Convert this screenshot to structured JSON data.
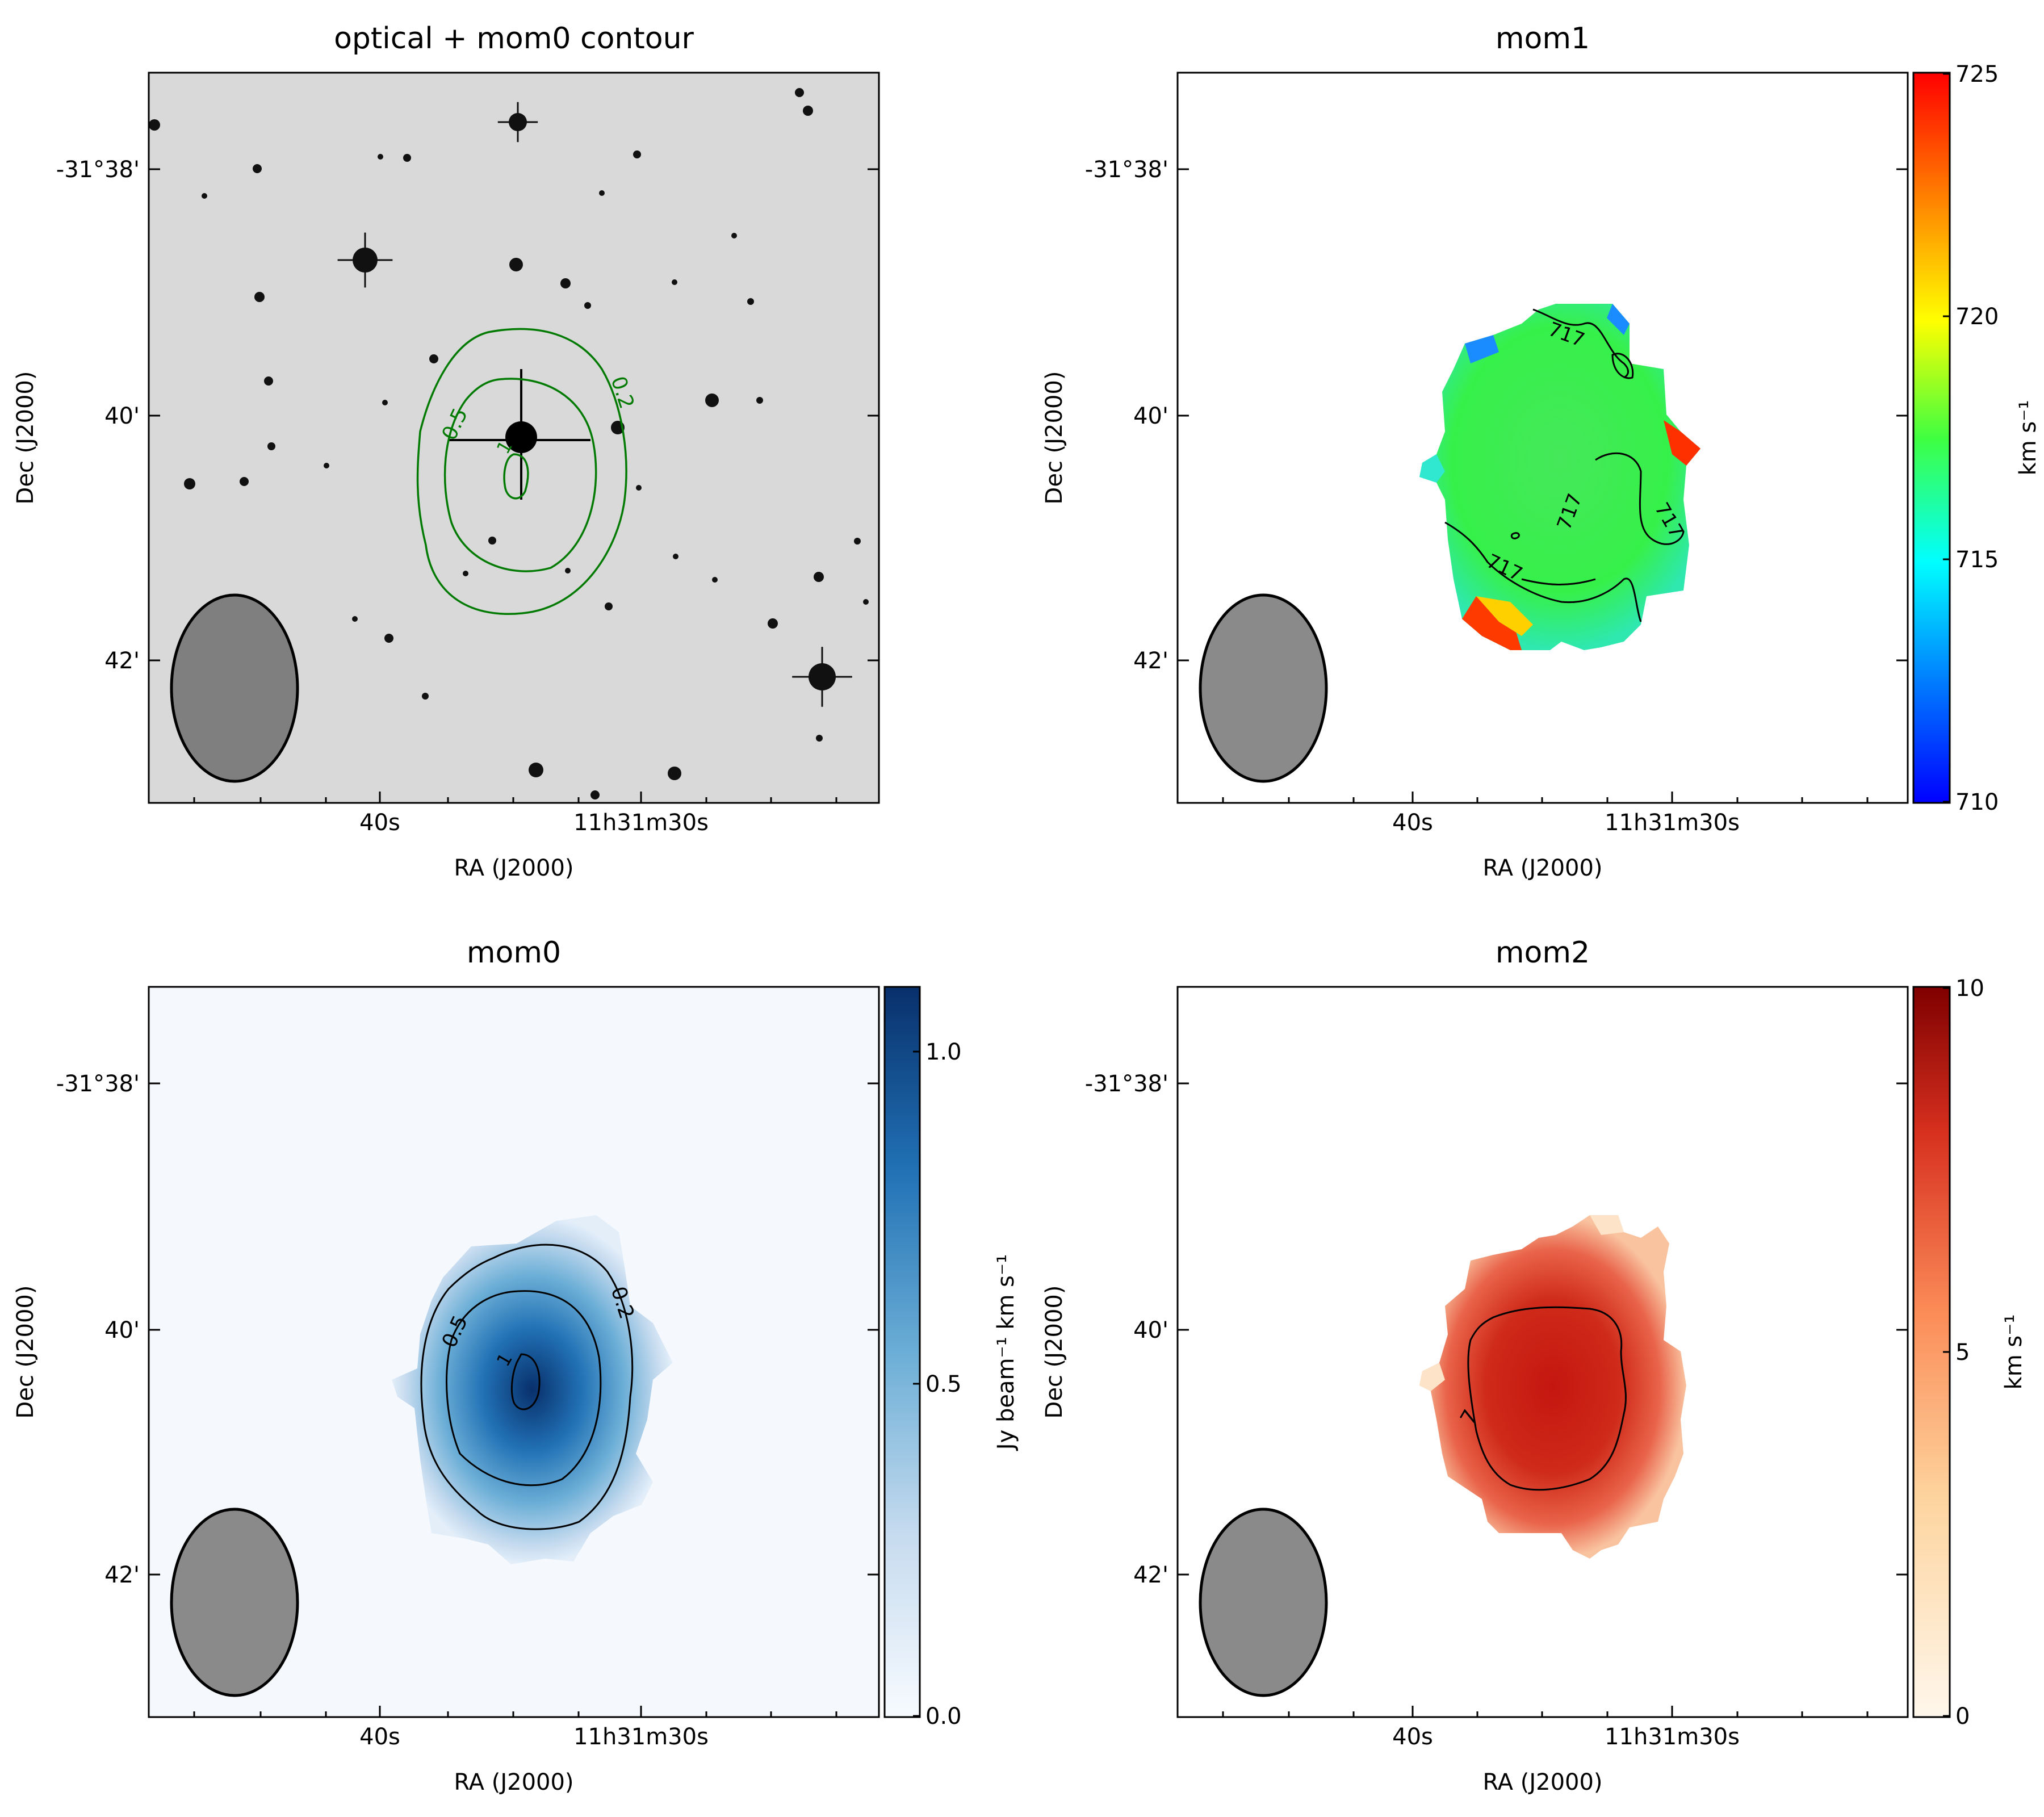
{
  "panels": [
    {
      "id": "optical",
      "title": "optical + mom0 contour",
      "xlabel": "RA (J2000)",
      "ylabel": "Dec (J2000)",
      "xticks": [
        "40s",
        "11h31m30s"
      ],
      "yticks": [
        "-31°38'",
        "40'",
        "42'"
      ],
      "contour_labels": [
        "0.5",
        "0.2",
        "1"
      ],
      "colors": {
        "contour": "#007a00",
        "background": "#d9d9d9"
      }
    },
    {
      "id": "mom1",
      "title": "mom1",
      "xlabel": "RA (J2000)",
      "ylabel": "Dec (J2000)",
      "xticks": [
        "40s",
        "11h31m30s"
      ],
      "yticks": [
        "-31°38'",
        "40'",
        "42'"
      ],
      "contour_labels": [
        "717",
        "717",
        "717",
        "717"
      ],
      "colorbar": {
        "label": "km s⁻¹",
        "ticks": [
          "710",
          "715",
          "720",
          "725"
        ],
        "range": [
          710,
          725
        ],
        "cmap": "jet"
      }
    },
    {
      "id": "mom0",
      "title": "mom0",
      "xlabel": "RA (J2000)",
      "ylabel": "Dec (J2000)",
      "xticks": [
        "40s",
        "11h31m30s"
      ],
      "yticks": [
        "-31°38'",
        "40'",
        "42'"
      ],
      "contour_labels": [
        "0.5",
        "0.2",
        "1"
      ],
      "colorbar": {
        "label": "Jy beam⁻¹ km s⁻¹",
        "ticks": [
          "0.0",
          "0.5",
          "1.0"
        ],
        "range": [
          0.0,
          1.1
        ],
        "cmap": "Blues"
      }
    },
    {
      "id": "mom2",
      "title": "mom2",
      "xlabel": "RA (J2000)",
      "ylabel": "Dec (J2000)",
      "xticks": [
        "40s",
        "11h31m30s"
      ],
      "yticks": [
        "-31°38'",
        "40'",
        "42'"
      ],
      "contour_labels": [
        "7"
      ],
      "colorbar": {
        "label": "km s⁻¹",
        "ticks": [
          "0",
          "5",
          "10"
        ],
        "range": [
          0,
          10
        ],
        "cmap": "OrRd"
      }
    }
  ],
  "chart_data": [
    {
      "type": "heatmap",
      "title": "optical + mom0 contour",
      "xlabel": "RA (J2000)",
      "ylabel": "Dec (J2000)",
      "contour_levels": [
        0.2,
        0.5,
        1
      ]
    },
    {
      "type": "heatmap",
      "title": "mom1",
      "xlabel": "RA (J2000)",
      "ylabel": "Dec (J2000)",
      "colorbar_range": [
        710,
        725
      ],
      "contour_levels": [
        717
      ]
    },
    {
      "type": "heatmap",
      "title": "mom0",
      "xlabel": "RA (J2000)",
      "ylabel": "Dec (J2000)",
      "colorbar_range": [
        0.0,
        1.1
      ],
      "contour_levels": [
        0.2,
        0.5,
        1
      ]
    },
    {
      "type": "heatmap",
      "title": "mom2",
      "xlabel": "RA (J2000)",
      "ylabel": "Dec (J2000)",
      "colorbar_range": [
        0,
        10
      ],
      "contour_levels": [
        7
      ]
    }
  ]
}
